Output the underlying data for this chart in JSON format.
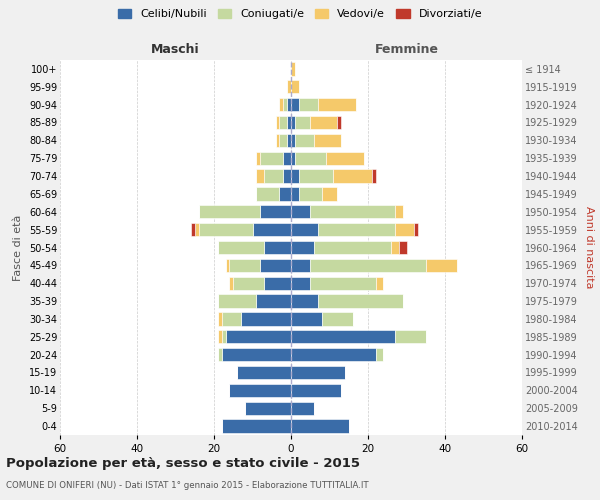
{
  "age_groups": [
    "0-4",
    "5-9",
    "10-14",
    "15-19",
    "20-24",
    "25-29",
    "30-34",
    "35-39",
    "40-44",
    "45-49",
    "50-54",
    "55-59",
    "60-64",
    "65-69",
    "70-74",
    "75-79",
    "80-84",
    "85-89",
    "90-94",
    "95-99",
    "100+"
  ],
  "birth_years": [
    "2010-2014",
    "2005-2009",
    "2000-2004",
    "1995-1999",
    "1990-1994",
    "1985-1989",
    "1980-1984",
    "1975-1979",
    "1970-1974",
    "1965-1969",
    "1960-1964",
    "1955-1959",
    "1950-1954",
    "1945-1949",
    "1940-1944",
    "1935-1939",
    "1930-1934",
    "1925-1929",
    "1920-1924",
    "1915-1919",
    "≤ 1914"
  ],
  "maschi": {
    "celibi": [
      18,
      12,
      16,
      14,
      18,
      17,
      13,
      9,
      7,
      8,
      7,
      10,
      8,
      3,
      2,
      2,
      1,
      1,
      1,
      0,
      0
    ],
    "coniugati": [
      0,
      0,
      0,
      0,
      1,
      1,
      5,
      10,
      8,
      8,
      12,
      14,
      16,
      6,
      5,
      6,
      2,
      2,
      1,
      0,
      0
    ],
    "vedovi": [
      0,
      0,
      0,
      0,
      0,
      1,
      1,
      0,
      1,
      1,
      0,
      1,
      0,
      0,
      2,
      1,
      1,
      1,
      1,
      1,
      0
    ],
    "divorziati": [
      0,
      0,
      0,
      0,
      0,
      0,
      0,
      0,
      0,
      0,
      0,
      1,
      0,
      0,
      0,
      0,
      0,
      0,
      0,
      0,
      0
    ]
  },
  "femmine": {
    "celibi": [
      15,
      6,
      13,
      14,
      22,
      27,
      8,
      7,
      5,
      5,
      6,
      7,
      5,
      2,
      2,
      1,
      1,
      1,
      2,
      0,
      0
    ],
    "coniugati": [
      0,
      0,
      0,
      0,
      2,
      8,
      8,
      22,
      17,
      30,
      20,
      20,
      22,
      6,
      9,
      8,
      5,
      4,
      5,
      0,
      0
    ],
    "vedovi": [
      0,
      0,
      0,
      0,
      0,
      0,
      0,
      0,
      2,
      8,
      2,
      5,
      2,
      4,
      10,
      10,
      7,
      7,
      10,
      2,
      1
    ],
    "divorziati": [
      0,
      0,
      0,
      0,
      0,
      0,
      0,
      0,
      0,
      0,
      2,
      1,
      0,
      0,
      1,
      0,
      0,
      1,
      0,
      0,
      0
    ]
  },
  "colors": {
    "celibi": "#3a6ca8",
    "coniugati": "#c5d9a0",
    "vedovi": "#f5c96a",
    "divorziati": "#c0392b"
  },
  "xlim": 60,
  "title": "Popolazione per età, sesso e stato civile - 2015",
  "subtitle": "COMUNE DI ONIFERI (NU) - Dati ISTAT 1° gennaio 2015 - Elaborazione TUTTITALIA.IT",
  "legend_labels": [
    "Celibi/Nubili",
    "Coniugati/e",
    "Vedovi/e",
    "Divorziati/e"
  ],
  "ylabel_left": "Fasce di età",
  "ylabel_right": "Anni di nascita",
  "xlabel_left": "Maschi",
  "xlabel_right": "Femmine",
  "bg_color": "#f0f0f0",
  "plot_bg_color": "#ffffff"
}
